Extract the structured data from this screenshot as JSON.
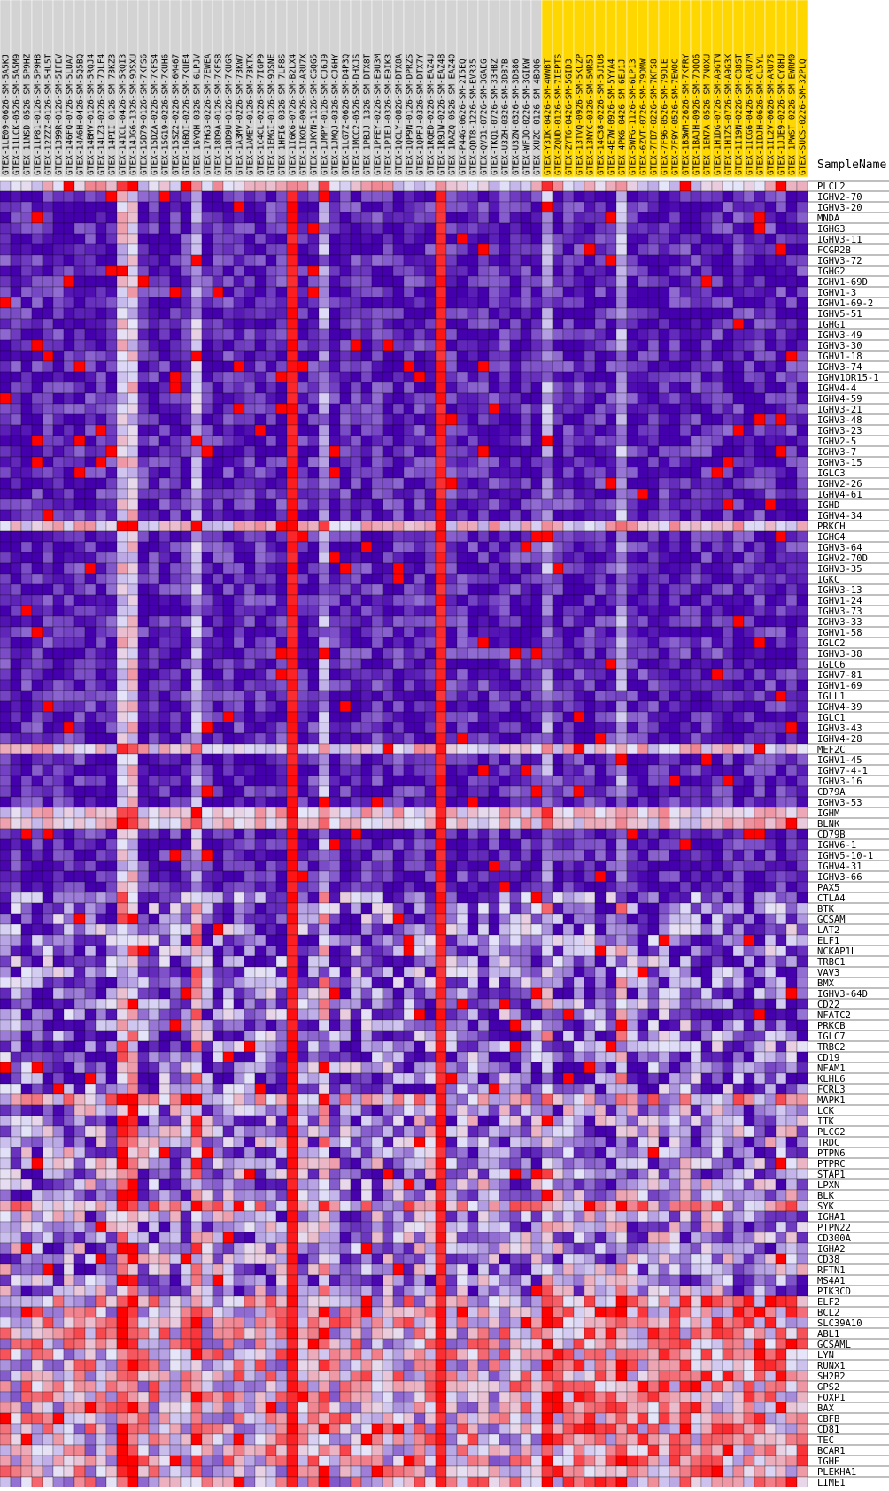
{
  "chart_data": {
    "type": "heatmap",
    "row_header": "SampleName",
    "color_scale": {
      "low": "#4500ad",
      "mid": "#e6e6fa",
      "high": "#ff0000"
    },
    "highlight_color": "#ffd700",
    "highlight_from_index": 51,
    "columns": [
      "GTEX-1LE09-0626-SM-5A5KJ",
      "GTEX-11LCK-0526-SM-5A5M9",
      "GTEX-11NSD-0526-SM-5P9HZ",
      "GTEX-11P81-0126-SM-5P9H8",
      "GTEX-12ZZZ-0126-SM-5HL5T",
      "GTEX-1399R-0126-SM-5IFEV",
      "GTEX-146FQ-0726-SM-5LUA7",
      "GTEX-14A6H-0426-SM-5Q5BQ",
      "GTEX-14BMV-0126-SM-5RQJ4",
      "GTEX-14LZ3-0226-SM-7DLF4",
      "GTEX-14PII-0126-SM-73KZ3",
      "GTEX-14ICL-0426-SM-5RQI3",
      "GTEX-14JG6-1326-SM-9OSXU",
      "GTEX-15D79-0126-SM-7KFS6",
      "GTEX-15DZA-0226-SM-7KFS4",
      "GTEX-15G19-0226-SM-7KUH6",
      "GTEX-15SZ2-0226-SM-6M467",
      "GTEX-16BQI-0226-SM-7KUE4",
      "GTEX-16YQH-0326-SM-6LPJV",
      "GTEX-17HG3-0226-SM-7EWEA",
      "GTEX-18D9A-0126-SM-7KFSB",
      "GTEX-18D9U-0126-SM-7KUGR",
      "GTEX-1A3MV-0226-SM-73KW7",
      "GTEX-1AMEY-0126-SM-73KTX",
      "GTEX-1C4CL-0226-SM-7IGP9",
      "GTEX-1EMGI-0126-SM-9OSNE",
      "GTEX-1HFI6-0326-SM-7LF8S",
      "GTEX-1I6K6-0726-SM-B2LX4",
      "GTEX-1IKOE-0926-SM-ARU7X",
      "GTEX-1JKYN-1126-SM-CGQG5",
      "GTEX-1JMPY-0126-SM-CJ6J9",
      "GTEX-1JMQJ-0326-SM-CJ6HY",
      "GTEX-1LG7Z-0626-SM-D4P3Q",
      "GTEX-1MCC2-0526-SM-DHXJS",
      "GTEX-1PBJJ-1326-SM-DTX8T",
      "GTEX-1PFEY-0226-SM-E9U3M",
      "GTEX-1PIEJ-0326-SM-E9IK3",
      "GTEX-1QCLY-0826-SM-DTX8A",
      "GTEX-1QP9N-0126-SM-DPRZS",
      "GTEX-1QPFJ-0326-SM-DTX7Y",
      "GTEX-1RQED-0226-SM-EAZ4U",
      "GTEX-1R9JW-0226-SM-EAZ4B",
      "GTEX-1RAZQ-0526-SM-EAZ4O",
      "GTEX-P44G-0626-SM-2I5EQ",
      "GTEX-QDT8-1226-SM-EVR35",
      "GTEX-QV31-0726-SM-3GAEG",
      "GTEX-TKQ1-0726-SM-33HBZ",
      "GTEX-U3ZH-0326-SM-3DB7B",
      "GTEX-U3ZN-0326-SM-3DB86",
      "GTEX-WFJO-0226-SM-3GIKW",
      "GTEX-XUZC-0126-SM-4BOQ6",
      "GTEX-Y3IK-0426-SM-4WWBT",
      "GTEX-ZQUD-0126-SM-7IEPTS",
      "GTEX-ZYT6-0426-SM-5GID3",
      "GTEX-13TVQ-0926-SM-5KLZP",
      "GTEX-13NYC-0326-SM-5MR5J",
      "GTEX-14C38-0226-SM-5UIU8",
      "GTEX-4E7W-0926-SM-5YYA4",
      "GTEX-4PK6-0426-SM-6EU1J",
      "GTEX-5WFG-1126-SM-6LP13",
      "GTEX-6ZVT-0726-SM-79OMW",
      "GTEX-7FB7-0226-SM-7KFS8",
      "GTEX-7F96-0526-SM-79OLE",
      "GTEX-7F9Y-0526-SM-7EWOC",
      "GTEX-1B3WM-2626-SM-7KFRY",
      "GTEX-1BAJH-0926-SM-7DQO6",
      "GTEX-1EN7A-0526-SM-7NOXU",
      "GTEX-1H1DG-0726-SM-A9GTN",
      "GTEX-1H1ZS-0726-SM-A9G3K",
      "GTEX-1I19N-0226-SM-CB8ST",
      "GTEX-1ICG6-0426-SM-ARU7M",
      "GTEX-1IDJH-0626-SM-CL5YL",
      "GTEX-1IL2V-0626-SM-ARU7S",
      "GTEX-1JJE9-0226-SM-CY8HU",
      "GTEX-1PWST-0226-SM-EWRM0",
      "GTEX-SUCS-0226-SM-32PLQ"
    ],
    "rows": [
      "PLCL2",
      "IGHV2-70",
      "IGHV3-20",
      "MNDA",
      "IGHG3",
      "IGHV3-11",
      "FCGR2B",
      "IGHV3-72",
      "IGHG2",
      "IGHV1-69D",
      "IGHV1-3",
      "IGHV1-69-2",
      "IGHV5-51",
      "IGHG1",
      "IGHV3-49",
      "IGHV3-30",
      "IGHV1-18",
      "IGHV3-74",
      "IGHV1OR15-1",
      "IGHV4-4",
      "IGHV4-59",
      "IGHV3-21",
      "IGHV3-48",
      "IGHV3-23",
      "IGHV2-5",
      "IGHV3-7",
      "IGHV3-15",
      "IGLC3",
      "IGHV2-26",
      "IGHV4-61",
      "IGHD",
      "IGHV4-34",
      "PRKCH",
      "IGHG4",
      "IGHV3-64",
      "IGHV2-70D",
      "IGHV3-35",
      "IGKC",
      "IGHV3-13",
      "IGHV1-24",
      "IGHV3-73",
      "IGHV3-33",
      "IGHV1-58",
      "IGLC2",
      "IGHV3-38",
      "IGLC6",
      "IGHV7-81",
      "IGHV1-69",
      "IGLL1",
      "IGHV4-39",
      "IGLC1",
      "IGHV3-43",
      "IGHV4-28",
      "MEF2C",
      "IGHV1-45",
      "IGHV7-4-1",
      "IGHV3-16",
      "CD79A",
      "IGHV3-53",
      "IGHM",
      "BLNK",
      "CD79B",
      "IGHV6-1",
      "IGHV5-10-1",
      "IGHV4-31",
      "IGHV3-66",
      "PAX5",
      "CTLA4",
      "BTK",
      "GCSAM",
      "LAT2",
      "ELF1",
      "NCKAP1L",
      "TRBC1",
      "VAV3",
      "BMX",
      "IGHV3-64D",
      "CD22",
      "NFATC2",
      "PRKCB",
      "IGLC7",
      "TRBC2",
      "CD19",
      "NFAM1",
      "KLHL6",
      "FCRL3",
      "MAPK1",
      "LCK",
      "ITK",
      "PLCG2",
      "TRDC",
      "PTPN6",
      "PTPRC",
      "STAP1",
      "LPXN",
      "BLK",
      "SYK",
      "IGHA1",
      "PTPN22",
      "CD300A",
      "IGHA2",
      "CD38",
      "RFTN1",
      "MS4A1",
      "PIK3CD",
      "ELF2",
      "BCL2",
      "SLC39A10",
      "ABL1",
      "GCSAML",
      "LYN",
      "RUNX1",
      "SH2B2",
      "GPS2",
      "FOXP1",
      "BAX",
      "CBFB",
      "CD81",
      "TEC",
      "BCAR1",
      "IGHE",
      "PLEKHA1",
      "LIME1"
    ]
  }
}
